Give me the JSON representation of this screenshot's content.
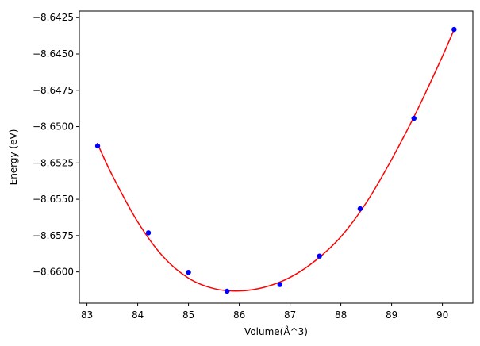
{
  "chart_data": {
    "type": "scatter",
    "title": "",
    "xlabel": "Volume(Å^3)",
    "ylabel": "Energy (eV)",
    "xlim": [
      82.85,
      90.6
    ],
    "ylim": [
      -8.66215,
      -8.64205
    ],
    "xticks": [
      83,
      84,
      85,
      86,
      87,
      88,
      89,
      90
    ],
    "xtick_labels": [
      "83",
      "84",
      "85",
      "86",
      "87",
      "88",
      "89",
      "90"
    ],
    "yticks": [
      -8.66,
      -8.6575,
      -8.655,
      -8.6525,
      -8.65,
      -8.6475,
      -8.645,
      -8.6425
    ],
    "ytick_labels": [
      "−8.6600",
      "−8.6575",
      "−8.6550",
      "−8.6525",
      "−8.6500",
      "−8.6475",
      "−8.6450",
      "−8.6425"
    ],
    "grid": false,
    "series": [
      {
        "kind": "points",
        "color": "#0000ff",
        "x": [
          83.21,
          84.21,
          85.0,
          85.76,
          86.8,
          87.58,
          88.38,
          89.44,
          90.23
        ],
        "y": [
          -8.65133,
          -8.65731,
          -8.66003,
          -8.66133,
          -8.66087,
          -8.65891,
          -8.65565,
          -8.64943,
          -8.64331
        ]
      },
      {
        "kind": "fit-line",
        "color": "#ff0000",
        "x": [
          83.2,
          83.5,
          84.0,
          84.5,
          85.0,
          85.5,
          86.0,
          86.5,
          87.0,
          87.5,
          88.0,
          88.5,
          89.0,
          89.5,
          90.0,
          90.23
        ],
        "y": [
          -8.65112,
          -8.65336,
          -8.65656,
          -8.65895,
          -8.66043,
          -8.66115,
          -8.66131,
          -8.66105,
          -8.66038,
          -8.65922,
          -8.65758,
          -8.65524,
          -8.65226,
          -8.6489,
          -8.64517,
          -8.64331
        ]
      }
    ]
  }
}
